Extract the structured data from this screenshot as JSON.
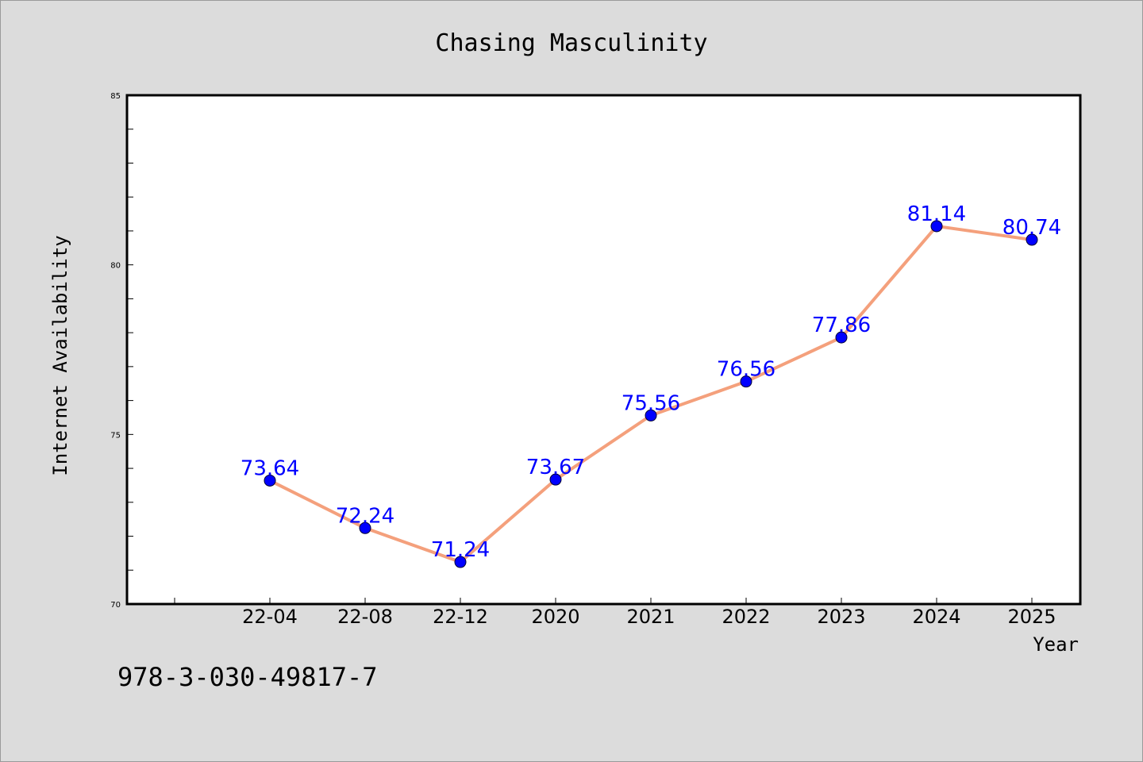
{
  "chart_data": {
    "type": "line",
    "title": "Chasing Masculinity",
    "xlabel": "Year",
    "ylabel": "Internet Availability",
    "categories": [
      "22-04",
      "22-08",
      "22-12",
      "2020",
      "2021",
      "2022",
      "2023",
      "2024",
      "2025"
    ],
    "series": [
      {
        "values": [
          73.64,
          72.24,
          71.24,
          73.67,
          75.56,
          76.56,
          77.86,
          81.14,
          80.74
        ]
      }
    ],
    "data_labels": [
      "73.64",
      "72.24",
      "71.24",
      "73.67",
      "75.56",
      "76.56",
      "77.86",
      "81.14",
      "80.74"
    ],
    "ylim": [
      70,
      85
    ],
    "yticks": [
      70,
      75,
      80,
      85
    ],
    "ytick_labels": [
      "70",
      "75",
      "80",
      "85"
    ],
    "grid": false,
    "legend": "none",
    "colors": {
      "line": "#f4a07c",
      "marker": "#0000ff",
      "data_label": "#0000ff",
      "background": "#dcdcdc",
      "plot_background": "#ffffff"
    }
  },
  "footer": {
    "isbn": "978-3-030-49817-7"
  }
}
